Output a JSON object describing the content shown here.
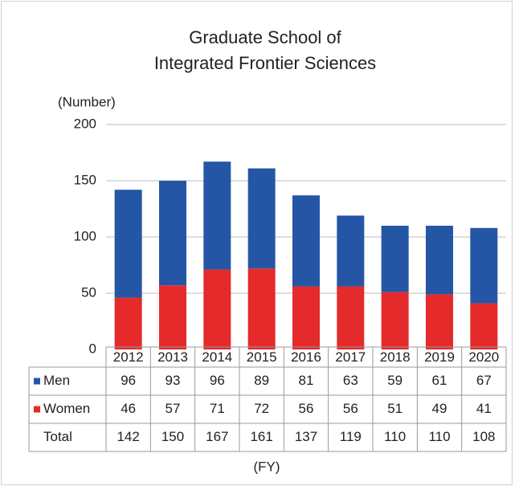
{
  "chart_data": {
    "type": "stacked_bar",
    "title": [
      "Graduate School of",
      "Integrated Frontier Sciences"
    ],
    "y_label": "(Number)",
    "x_label": "(FY)",
    "categories": [
      "2012",
      "2013",
      "2014",
      "2015",
      "2016",
      "2017",
      "2018",
      "2019",
      "2020"
    ],
    "series": [
      {
        "name": "Men",
        "color": "#2456a5",
        "values": [
          96,
          93,
          96,
          89,
          81,
          63,
          59,
          61,
          67
        ]
      },
      {
        "name": "Women",
        "color": "#e42a2a",
        "values": [
          46,
          57,
          71,
          72,
          56,
          56,
          51,
          49,
          41
        ]
      }
    ],
    "totals_label": "Total",
    "totals": [
      142,
      150,
      167,
      161,
      137,
      119,
      110,
      110,
      108
    ],
    "ylim": [
      0,
      200
    ],
    "yticks": [
      0,
      50,
      100,
      150,
      200
    ],
    "grid": true
  }
}
